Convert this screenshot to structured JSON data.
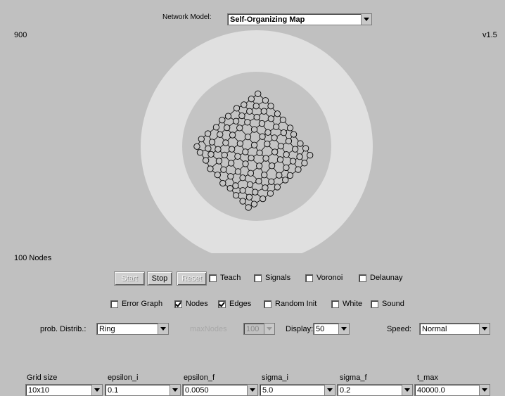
{
  "header": {
    "network_model_label": "Network Model:",
    "network_model_value": "Self-Organizing Map",
    "counter": "900",
    "version": "v1.5",
    "nodes_count": "100 Nodes"
  },
  "buttons": {
    "start": "Start",
    "stop": "Stop",
    "reset": "Reset"
  },
  "checkboxes_row1": [
    {
      "label": "Teach",
      "checked": false
    },
    {
      "label": "Signals",
      "checked": false
    },
    {
      "label": "Voronoi",
      "checked": false
    },
    {
      "label": "Delaunay",
      "checked": false
    }
  ],
  "checkboxes_row2": [
    {
      "label": "Error Graph",
      "checked": false
    },
    {
      "label": "Nodes",
      "checked": true
    },
    {
      "label": "Edges",
      "checked": true
    },
    {
      "label": "Random Init",
      "checked": false
    },
    {
      "label": "White",
      "checked": false
    },
    {
      "label": "Sound",
      "checked": false
    }
  ],
  "options": {
    "prob_distrib_label": "prob. Distrib.:",
    "prob_distrib_value": "Ring",
    "max_nodes_label": "maxNodes",
    "max_nodes_value": "100",
    "display_label": "Display:",
    "display_value": "50",
    "speed_label": "Speed:",
    "speed_value": "Normal"
  },
  "params": [
    {
      "label": "Grid size",
      "value": "10x10"
    },
    {
      "label": "epsilon_i",
      "value": "0.1"
    },
    {
      "label": "epsilon_f",
      "value": "0.0050"
    },
    {
      "label": "sigma_i",
      "value": "5.0"
    },
    {
      "label": "sigma_f",
      "value": "0.2"
    },
    {
      "label": "t_max",
      "value": "40000.0"
    }
  ],
  "colors": {
    "background": "#c0c0c0",
    "ring_outer": "#e0e0e0",
    "ring_inner": "#c4c4c4",
    "node_stroke": "#000000"
  }
}
